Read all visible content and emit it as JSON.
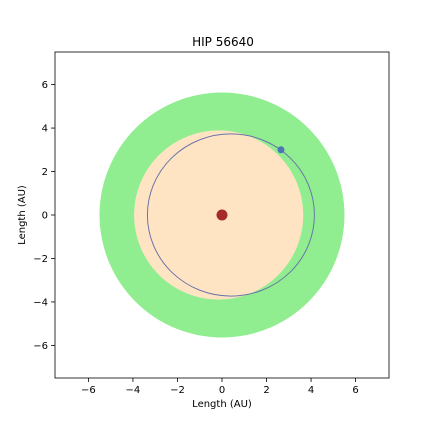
{
  "chart_data": {
    "type": "scatter",
    "title": "HIP 56640",
    "xlabel": "Length (AU)",
    "ylabel": "Length (AU)",
    "xlim": [
      -7.5,
      7.5
    ],
    "ylim": [
      -7.5,
      7.5
    ],
    "xticks": [
      -6,
      -4,
      -2,
      0,
      2,
      4,
      6
    ],
    "yticks": [
      -6,
      -4,
      -2,
      0,
      2,
      4,
      6
    ],
    "grid": false,
    "zones": [
      {
        "label": "outer-zone",
        "radius": 5.5,
        "color": "#90ee90"
      },
      {
        "label": "inner-zone",
        "radius": 3.8,
        "color": "#ffe4c4"
      }
    ],
    "orbit": {
      "semi_major_axis": 3.75,
      "center_x": 0.4,
      "center_y": 0.0,
      "semi_minor_axis": 3.73,
      "color": "#6b74a8"
    },
    "star": {
      "x": 0,
      "y": 0,
      "color": "#a52a2a"
    },
    "planet": {
      "x": 2.65,
      "y": 3.0,
      "color": "#4f73b4"
    }
  }
}
